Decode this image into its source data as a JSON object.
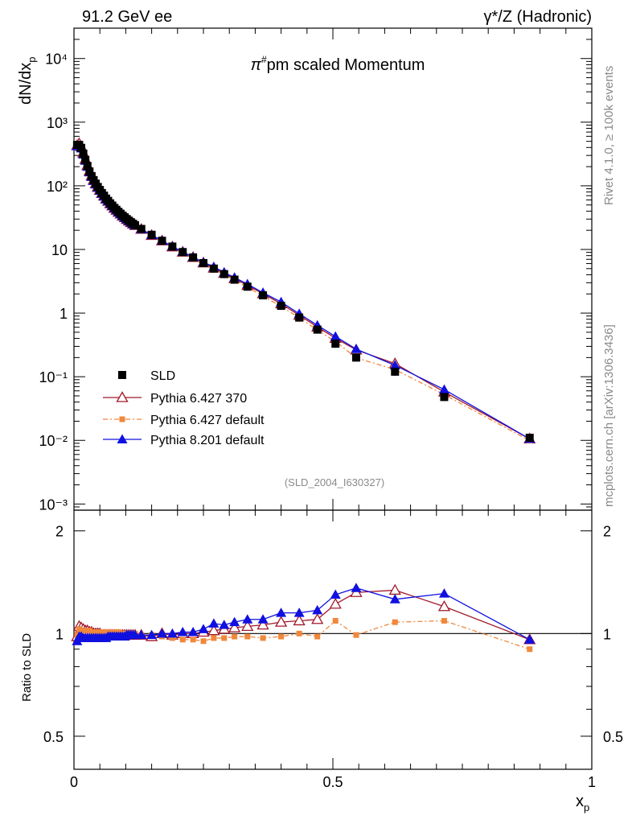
{
  "header": {
    "energy_label": "91.2 GeV ee",
    "process_label": "γ*/Z (Hadronic)",
    "side_rivet": "Rivet 4.1.0, ≥ 100k events",
    "side_mcplots": "mcplots.cern.ch [arXiv:1306.3436]"
  },
  "chart_data": {
    "type": "scatter",
    "title": "π#pm scaled Momentum",
    "analysis_tag": "(SLD_2004_I630327)",
    "xlabel": "x",
    "xlabel_sub": "p",
    "ylabel": "dN/dx",
    "ylabel_sub": "p",
    "ratio_ylabel": "Ratio to SLD",
    "xlim": [
      0,
      1
    ],
    "ylim_main": [
      0.0008,
      30000
    ],
    "yscale_main": "log",
    "ylim_ratio": [
      0.4,
      2.3
    ],
    "yscale_ratio": "log",
    "x_ticks": [
      "0",
      "0.5",
      "1"
    ],
    "main_y_ticks": [
      "10⁻³",
      "10⁻²",
      "10⁻¹",
      "1",
      "10",
      "10²",
      "10³",
      "10⁴"
    ],
    "ratio_y_ticks": [
      "0.5",
      "1",
      "2"
    ],
    "legend": {
      "position": "bottom-left",
      "entries": [
        "SLD",
        "Pythia 6.427 370",
        "Pythia 6.427 default",
        "Pythia 8.201 default"
      ]
    },
    "x": [
      0.006,
      0.01,
      0.014,
      0.018,
      0.022,
      0.026,
      0.03,
      0.034,
      0.038,
      0.042,
      0.046,
      0.05,
      0.054,
      0.058,
      0.062,
      0.066,
      0.07,
      0.074,
      0.078,
      0.082,
      0.086,
      0.09,
      0.094,
      0.098,
      0.102,
      0.106,
      0.11,
      0.114,
      0.118,
      0.13,
      0.15,
      0.17,
      0.19,
      0.21,
      0.23,
      0.25,
      0.27,
      0.29,
      0.31,
      0.335,
      0.365,
      0.4,
      0.435,
      0.47,
      0.505,
      0.545,
      0.62,
      0.715,
      0.88
    ],
    "series": [
      {
        "name": "SLD",
        "marker": "square",
        "color": "#000000",
        "values": [
          440,
          440,
          395,
          320,
          255,
          205,
          168,
          142,
          123,
          108,
          96,
          86,
          77,
          70,
          63,
          58,
          53,
          49,
          45,
          42,
          39,
          36.5,
          34,
          32,
          30,
          28.3,
          26.8,
          25.4,
          24.1,
          21,
          17,
          13.7,
          11.1,
          9.1,
          7.5,
          6.1,
          5.0,
          4.1,
          3.35,
          2.6,
          1.9,
          1.3,
          0.85,
          0.55,
          0.33,
          0.2,
          0.12,
          0.048,
          0.011
        ],
        "ratio": [
          1,
          1,
          1,
          1,
          1,
          1,
          1,
          1,
          1,
          1,
          1,
          1,
          1,
          1,
          1,
          1,
          1,
          1,
          1,
          1,
          1,
          1,
          1,
          1,
          1,
          1,
          1,
          1,
          1,
          1,
          1,
          1,
          1,
          1,
          1,
          1,
          1,
          1,
          1,
          1,
          1,
          1,
          1,
          1,
          1,
          1,
          1,
          1,
          1
        ]
      },
      {
        "name": "Pythia 6.427 370",
        "marker": "open-triangle",
        "color": "#a0182a",
        "ratio": [
          0.98,
          1.05,
          1.04,
          1.03,
          1.02,
          1.02,
          1.01,
          1.01,
          1.0,
          1.0,
          1.0,
          1.0,
          0.99,
          0.99,
          0.99,
          0.99,
          0.99,
          0.99,
          0.99,
          0.99,
          0.99,
          0.99,
          0.99,
          0.99,
          0.99,
          0.99,
          0.99,
          0.99,
          0.99,
          0.99,
          0.98,
          1.0,
          0.99,
          1.0,
          1.0,
          1.01,
          1.02,
          1.03,
          1.04,
          1.05,
          1.06,
          1.08,
          1.09,
          1.1,
          1.22,
          1.32,
          1.34,
          1.2,
          0.96
        ]
      },
      {
        "name": "Pythia 6.427 default",
        "marker": "filled-square-small",
        "color": "#f0883c",
        "ratio": [
          0.99,
          1.03,
          1.02,
          1.02,
          1.02,
          1.02,
          1.02,
          1.01,
          1.01,
          1.01,
          1.01,
          1.01,
          1.01,
          1.01,
          1.01,
          1.01,
          1.01,
          1.01,
          1.01,
          1.01,
          1.01,
          1.0,
          1.0,
          1.0,
          1.0,
          1.0,
          1.0,
          1.0,
          1.0,
          0.99,
          0.99,
          0.98,
          0.97,
          0.96,
          0.96,
          0.95,
          0.97,
          0.97,
          0.98,
          0.98,
          0.97,
          0.98,
          1.0,
          0.98,
          1.09,
          0.99,
          1.08,
          1.09,
          0.9
        ]
      },
      {
        "name": "Pythia 8.201 default",
        "marker": "filled-triangle",
        "color": "#1010e0",
        "ratio": [
          0.95,
          0.98,
          0.98,
          0.97,
          0.97,
          0.97,
          0.97,
          0.97,
          0.97,
          0.97,
          0.97,
          0.97,
          0.97,
          0.97,
          0.97,
          0.98,
          0.98,
          0.98,
          0.98,
          0.98,
          0.98,
          0.98,
          0.98,
          0.98,
          0.99,
          0.99,
          0.99,
          0.99,
          0.99,
          0.99,
          0.99,
          1.0,
          1.0,
          1.01,
          1.01,
          1.03,
          1.07,
          1.06,
          1.08,
          1.1,
          1.1,
          1.15,
          1.15,
          1.17,
          1.3,
          1.36,
          1.26,
          1.31,
          0.96
        ]
      }
    ]
  }
}
